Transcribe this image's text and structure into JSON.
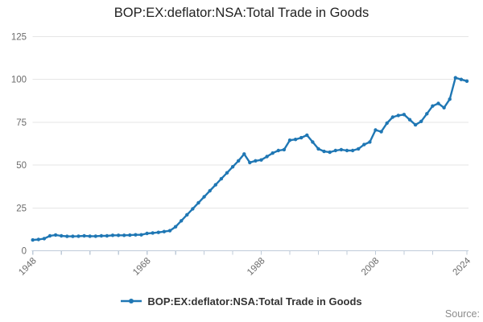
{
  "title": "BOP:EX:deflator:NSA:Total Trade in Goods",
  "legend": {
    "label": "BOP:EX:deflator:NSA:Total Trade in Goods"
  },
  "source_label": "Source:",
  "colors": {
    "line": "#1f77b4",
    "grid": "#e6e6e6",
    "axis": "#bfcbd9",
    "tick_label": "#6b6b6b",
    "title": "#222222",
    "legend_text": "#333333",
    "source": "#8c8c8c"
  },
  "chart_data": {
    "type": "line",
    "title": "BOP:EX:deflator:NSA:Total Trade in Goods",
    "xlabel": "",
    "ylabel": "",
    "xlim": [
      1948,
      2024
    ],
    "ylim": [
      0,
      125
    ],
    "yticks": [
      0,
      25,
      50,
      75,
      100,
      125
    ],
    "xticks": [
      1948,
      1953,
      1958,
      1963,
      1968,
      1973,
      1978,
      1983,
      1988,
      1993,
      1998,
      2003,
      2008,
      2013,
      2018,
      2024
    ],
    "xticks_labeled": [
      1948,
      1968,
      1988,
      2008,
      2024
    ],
    "grid": "horizontal",
    "legend_position": "bottom",
    "series": [
      {
        "name": "BOP:EX:deflator:NSA:Total Trade in Goods",
        "x": [
          1948,
          1949,
          1950,
          1951,
          1952,
          1953,
          1954,
          1955,
          1956,
          1957,
          1958,
          1959,
          1960,
          1961,
          1962,
          1963,
          1964,
          1965,
          1966,
          1967,
          1968,
          1969,
          1970,
          1971,
          1972,
          1973,
          1974,
          1975,
          1976,
          1977,
          1978,
          1979,
          1980,
          1981,
          1982,
          1983,
          1984,
          1985,
          1986,
          1987,
          1988,
          1989,
          1990,
          1991,
          1992,
          1993,
          1994,
          1995,
          1996,
          1997,
          1998,
          1999,
          2000,
          2001,
          2002,
          2003,
          2004,
          2005,
          2006,
          2007,
          2008,
          2009,
          2010,
          2011,
          2012,
          2013,
          2014,
          2015,
          2016,
          2017,
          2018,
          2019,
          2020,
          2021,
          2022,
          2023,
          2024
        ],
        "values": [
          6.3,
          6.6,
          7.1,
          8.7,
          9.2,
          8.7,
          8.4,
          8.4,
          8.5,
          8.7,
          8.5,
          8.5,
          8.7,
          8.7,
          9,
          9,
          9,
          9.1,
          9.3,
          9.3,
          10.1,
          10.4,
          10.7,
          11.2,
          11.7,
          14,
          17.5,
          21,
          24.5,
          28,
          31.5,
          35,
          38.5,
          42,
          45.5,
          49,
          52.5,
          56.5,
          51.5,
          52.5,
          53,
          55,
          57,
          58.5,
          59,
          64.5,
          65,
          66,
          67.5,
          63.5,
          59.5,
          58,
          57.5,
          58.5,
          59,
          58.5,
          58.5,
          59.5,
          62,
          63.5,
          70.5,
          69.5,
          74.5,
          78,
          79,
          79.5,
          76.5,
          73.5,
          75.5,
          80,
          84.5,
          86,
          83.5,
          88.5,
          101,
          100,
          99
        ]
      }
    ]
  }
}
